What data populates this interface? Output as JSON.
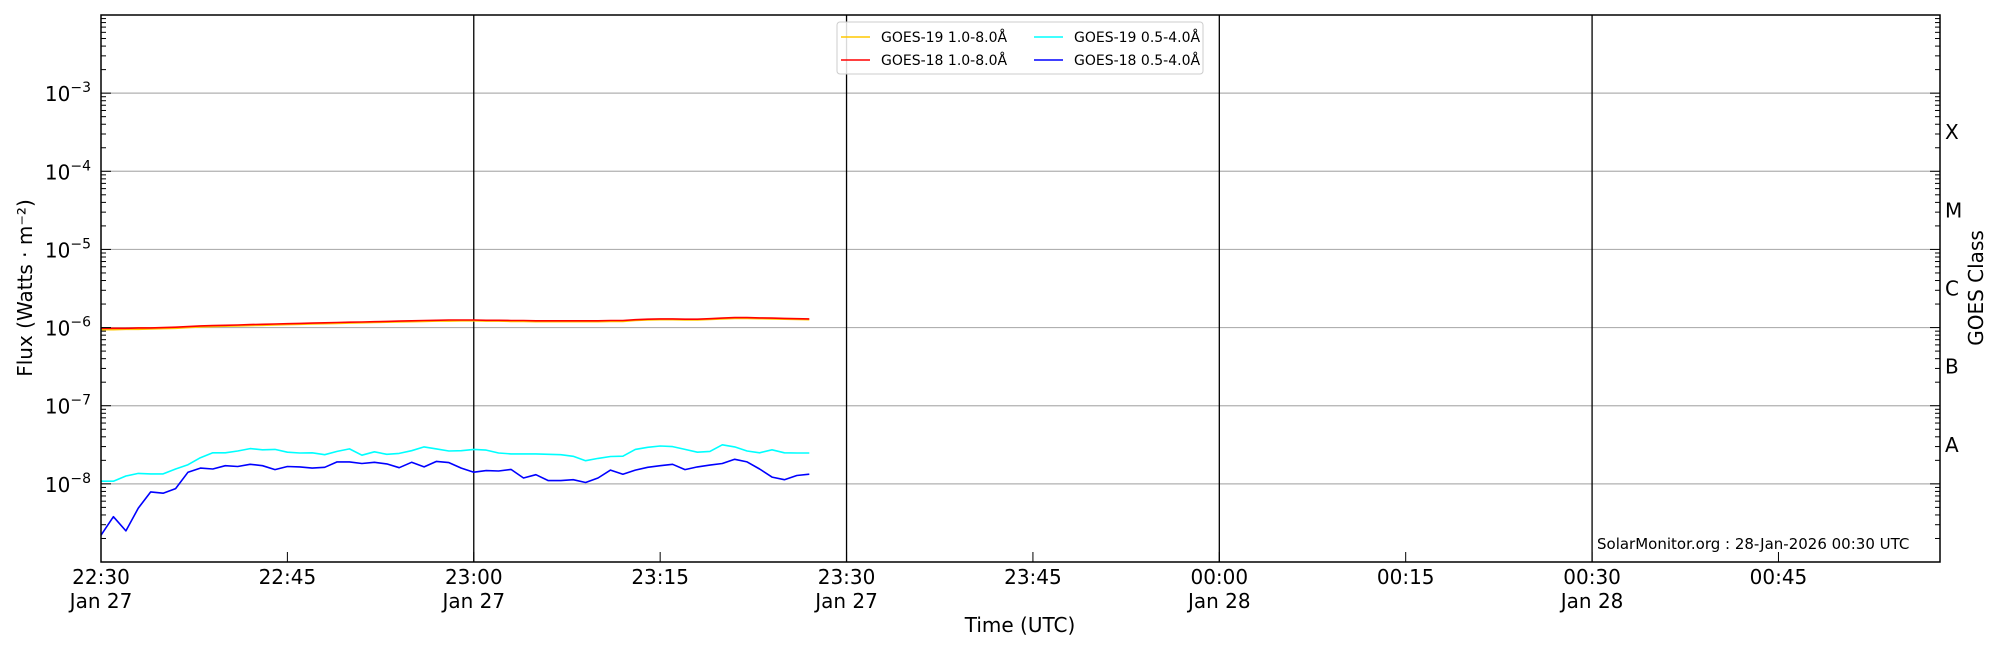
{
  "chart_data": {
    "type": "line",
    "title": "",
    "xlabel": "Time (UTC)",
    "ylabel": "Flux (Watts · m⁻²)",
    "ylabel_right": "GOES Class",
    "yscale": "log",
    "ylim": [
      1e-09,
      0.01
    ],
    "xlim": [
      "22:30",
      "00:58"
    ],
    "grid": {
      "horizontal": true,
      "vertical_lines_at": [
        "23:00",
        "23:30",
        "00:00",
        "00:30"
      ]
    },
    "legend_placement": "top-center",
    "y_ticks": [
      {
        "base": "10",
        "exp": "−8",
        "value": 1e-08
      },
      {
        "base": "10",
        "exp": "−7",
        "value": 1e-07
      },
      {
        "base": "10",
        "exp": "−6",
        "value": 1e-06
      },
      {
        "base": "10",
        "exp": "−5",
        "value": 1e-05
      },
      {
        "base": "10",
        "exp": "−4",
        "value": 0.0001
      },
      {
        "base": "10",
        "exp": "−3",
        "value": 0.001
      }
    ],
    "x_ticks": [
      {
        "time": "22:30",
        "label": "22:30",
        "date": "Jan 27"
      },
      {
        "time": "22:45",
        "label": "22:45",
        "date": ""
      },
      {
        "time": "23:00",
        "label": "23:00",
        "date": "Jan 27"
      },
      {
        "time": "23:15",
        "label": "23:15",
        "date": ""
      },
      {
        "time": "23:30",
        "label": "23:30",
        "date": "Jan 27"
      },
      {
        "time": "23:45",
        "label": "23:45",
        "date": ""
      },
      {
        "time": "00:00",
        "label": "00:00",
        "date": "Jan 28"
      },
      {
        "time": "00:15",
        "label": "00:15",
        "date": ""
      },
      {
        "time": "00:30",
        "label": "00:30",
        "date": "Jan 28"
      },
      {
        "time": "00:45",
        "label": "00:45",
        "date": ""
      }
    ],
    "classes": [
      {
        "label": "A",
        "low": 1e-08
      },
      {
        "label": "B",
        "low": 1e-07
      },
      {
        "label": "C",
        "low": 1e-06
      },
      {
        "label": "M",
        "low": 1e-05
      },
      {
        "label": "X",
        "low": 0.0001
      }
    ],
    "x": [
      "22:30",
      "22:31",
      "22:32",
      "22:33",
      "22:34",
      "22:35",
      "22:36",
      "22:37",
      "22:38",
      "22:39",
      "22:40",
      "22:41",
      "22:42",
      "22:43",
      "22:44",
      "22:45",
      "22:46",
      "22:47",
      "22:48",
      "22:49",
      "22:50",
      "22:51",
      "22:52",
      "22:53",
      "22:54",
      "22:55",
      "22:56",
      "22:57",
      "22:58",
      "22:59",
      "23:00",
      "23:01",
      "23:02",
      "23:03",
      "23:04",
      "23:05",
      "23:06",
      "23:07",
      "23:08",
      "23:09",
      "23:10",
      "23:11",
      "23:12",
      "23:13",
      "23:14",
      "23:15",
      "23:16",
      "23:17",
      "23:18",
      "23:19",
      "23:20",
      "23:21",
      "23:22",
      "23:23",
      "23:24",
      "23:25",
      "23:26",
      "23:27"
    ],
    "series": [
      {
        "name": "GOES-19 1.0-8.0Å",
        "color": "#ffc800",
        "values": [
          9.4e-07,
          9.4e-07,
          9.5e-07,
          9.5e-07,
          9.6e-07,
          9.7e-07,
          9.8e-07,
          1e-06,
          1.02e-06,
          1.03e-06,
          1.04e-06,
          1.05e-06,
          1.06e-06,
          1.07e-06,
          1.08e-06,
          1.09e-06,
          1.1e-06,
          1.11e-06,
          1.12e-06,
          1.13e-06,
          1.14e-06,
          1.15e-06,
          1.16e-06,
          1.17e-06,
          1.18e-06,
          1.19e-06,
          1.2e-06,
          1.21e-06,
          1.21e-06,
          1.22e-06,
          1.22e-06,
          1.21e-06,
          1.21e-06,
          1.2e-06,
          1.2e-06,
          1.19e-06,
          1.19e-06,
          1.19e-06,
          1.19e-06,
          1.19e-06,
          1.19e-06,
          1.2e-06,
          1.2e-06,
          1.23e-06,
          1.25e-06,
          1.26e-06,
          1.26e-06,
          1.25e-06,
          1.25e-06,
          1.27e-06,
          1.29e-06,
          1.31e-06,
          1.31e-06,
          1.3e-06,
          1.29e-06,
          1.28e-06,
          1.27e-06,
          1.26e-06
        ]
      },
      {
        "name": "GOES-18 1.0-8.0Å",
        "color": "#ff0000",
        "values": [
          9.8e-07,
          9.8e-07,
          9.8e-07,
          9.9e-07,
          9.9e-07,
          1e-06,
          1.01e-06,
          1.03e-06,
          1.05e-06,
          1.06e-06,
          1.07e-06,
          1.08e-06,
          1.09e-06,
          1.1e-06,
          1.11e-06,
          1.12e-06,
          1.13e-06,
          1.14e-06,
          1.15e-06,
          1.16e-06,
          1.17e-06,
          1.18e-06,
          1.19e-06,
          1.2e-06,
          1.21e-06,
          1.22e-06,
          1.23e-06,
          1.24e-06,
          1.25e-06,
          1.25e-06,
          1.25e-06,
          1.24e-06,
          1.24e-06,
          1.23e-06,
          1.23e-06,
          1.22e-06,
          1.22e-06,
          1.22e-06,
          1.22e-06,
          1.22e-06,
          1.22e-06,
          1.23e-06,
          1.23e-06,
          1.26e-06,
          1.28e-06,
          1.29e-06,
          1.29e-06,
          1.28e-06,
          1.28e-06,
          1.3e-06,
          1.32e-06,
          1.34e-06,
          1.34e-06,
          1.33e-06,
          1.32e-06,
          1.31e-06,
          1.3e-06,
          1.29e-06
        ]
      },
      {
        "name": "GOES-19 0.5-4.0Å",
        "color": "#00ffff",
        "values": [
          1.08e-08,
          1.08e-08,
          1.26e-08,
          1.36e-08,
          1.34e-08,
          1.34e-08,
          1.55e-08,
          1.76e-08,
          2.16e-08,
          2.5e-08,
          2.5e-08,
          2.63e-08,
          2.83e-08,
          2.73e-08,
          2.76e-08,
          2.54e-08,
          2.48e-08,
          2.5e-08,
          2.36e-08,
          2.6e-08,
          2.8e-08,
          2.33e-08,
          2.57e-08,
          2.39e-08,
          2.45e-08,
          2.66e-08,
          2.97e-08,
          2.8e-08,
          2.63e-08,
          2.66e-08,
          2.76e-08,
          2.7e-08,
          2.48e-08,
          2.42e-08,
          2.42e-08,
          2.42e-08,
          2.39e-08,
          2.36e-08,
          2.25e-08,
          1.98e-08,
          2.12e-08,
          2.24e-08,
          2.26e-08,
          2.76e-08,
          2.94e-08,
          3.05e-08,
          3e-08,
          2.76e-08,
          2.54e-08,
          2.6e-08,
          3.16e-08,
          2.97e-08,
          2.63e-08,
          2.5e-08,
          2.73e-08,
          2.5e-08,
          2.48e-08,
          2.48e-08
        ]
      },
      {
        "name": "GOES-18 0.5-4.0Å",
        "color": "#0000ff",
        "values": [
          2.2e-09,
          3.8e-09,
          2.5e-09,
          4.9e-09,
          7.9e-09,
          7.6e-09,
          8.7e-09,
          1.41e-08,
          1.59e-08,
          1.55e-08,
          1.71e-08,
          1.67e-08,
          1.78e-08,
          1.71e-08,
          1.52e-08,
          1.67e-08,
          1.65e-08,
          1.59e-08,
          1.63e-08,
          1.91e-08,
          1.91e-08,
          1.82e-08,
          1.89e-08,
          1.8e-08,
          1.61e-08,
          1.89e-08,
          1.65e-08,
          1.94e-08,
          1.87e-08,
          1.59e-08,
          1.41e-08,
          1.48e-08,
          1.46e-08,
          1.53e-08,
          1.19e-08,
          1.31e-08,
          1.1e-08,
          1.1e-08,
          1.13e-08,
          1.04e-08,
          1.19e-08,
          1.5e-08,
          1.33e-08,
          1.5e-08,
          1.63e-08,
          1.71e-08,
          1.78e-08,
          1.52e-08,
          1.65e-08,
          1.74e-08,
          1.82e-08,
          2.06e-08,
          1.91e-08,
          1.55e-08,
          1.22e-08,
          1.13e-08,
          1.28e-08,
          1.33e-08
        ]
      }
    ],
    "annotation": "SolarMonitor.org : 28-Jan-2026 00:30 UTC"
  }
}
